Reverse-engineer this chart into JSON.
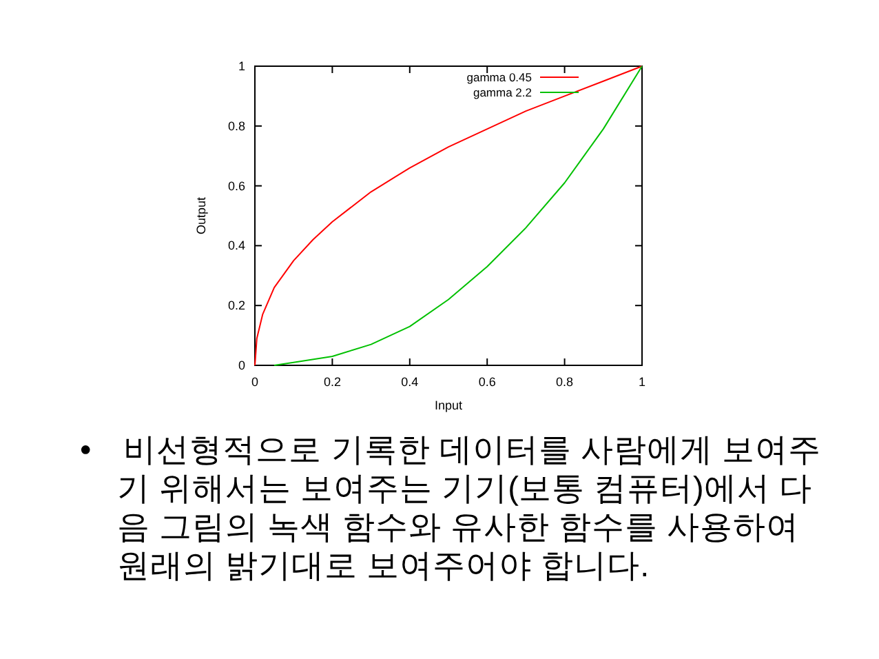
{
  "chart_data": {
    "type": "line",
    "xlabel": "Input",
    "ylabel": "Output",
    "xlim": [
      0,
      1
    ],
    "ylim": [
      0,
      1
    ],
    "xticks": [
      0,
      0.2,
      0.4,
      0.6,
      0.8,
      1
    ],
    "yticks": [
      0,
      0.2,
      0.4,
      0.6,
      0.8,
      1
    ],
    "grid": false,
    "legend": "top right",
    "marker": "none",
    "line_style": "solid",
    "series": [
      {
        "name": "gamma 0.45",
        "color": "#ff0000",
        "x": [
          0,
          0.005,
          0.02,
          0.05,
          0.1,
          0.15,
          0.2,
          0.3,
          0.4,
          0.5,
          0.6,
          0.7,
          0.8,
          0.9,
          1
        ],
        "values": [
          0,
          0.09,
          0.17,
          0.26,
          0.35,
          0.42,
          0.48,
          0.58,
          0.66,
          0.73,
          0.79,
          0.85,
          0.9,
          0.95,
          1
        ]
      },
      {
        "name": "gamma 2.2",
        "color": "#00c000",
        "x": [
          0.05,
          0.1,
          0.2,
          0.3,
          0.4,
          0.5,
          0.6,
          0.7,
          0.8,
          0.9,
          1
        ],
        "values": [
          0,
          0.01,
          0.03,
          0.07,
          0.13,
          0.22,
          0.33,
          0.46,
          0.61,
          0.79,
          1
        ]
      }
    ],
    "annotations": [
      "• 비선형적으로 기록한 데이터를 사람에게 보여주기 위해서는 보여주는 기기(보통 컴퓨터)에서 다음 그림의 녹색 함수와 유사한 함수를 사용하여 원래의 밝기대로 보여주어야 합니다."
    ]
  }
}
